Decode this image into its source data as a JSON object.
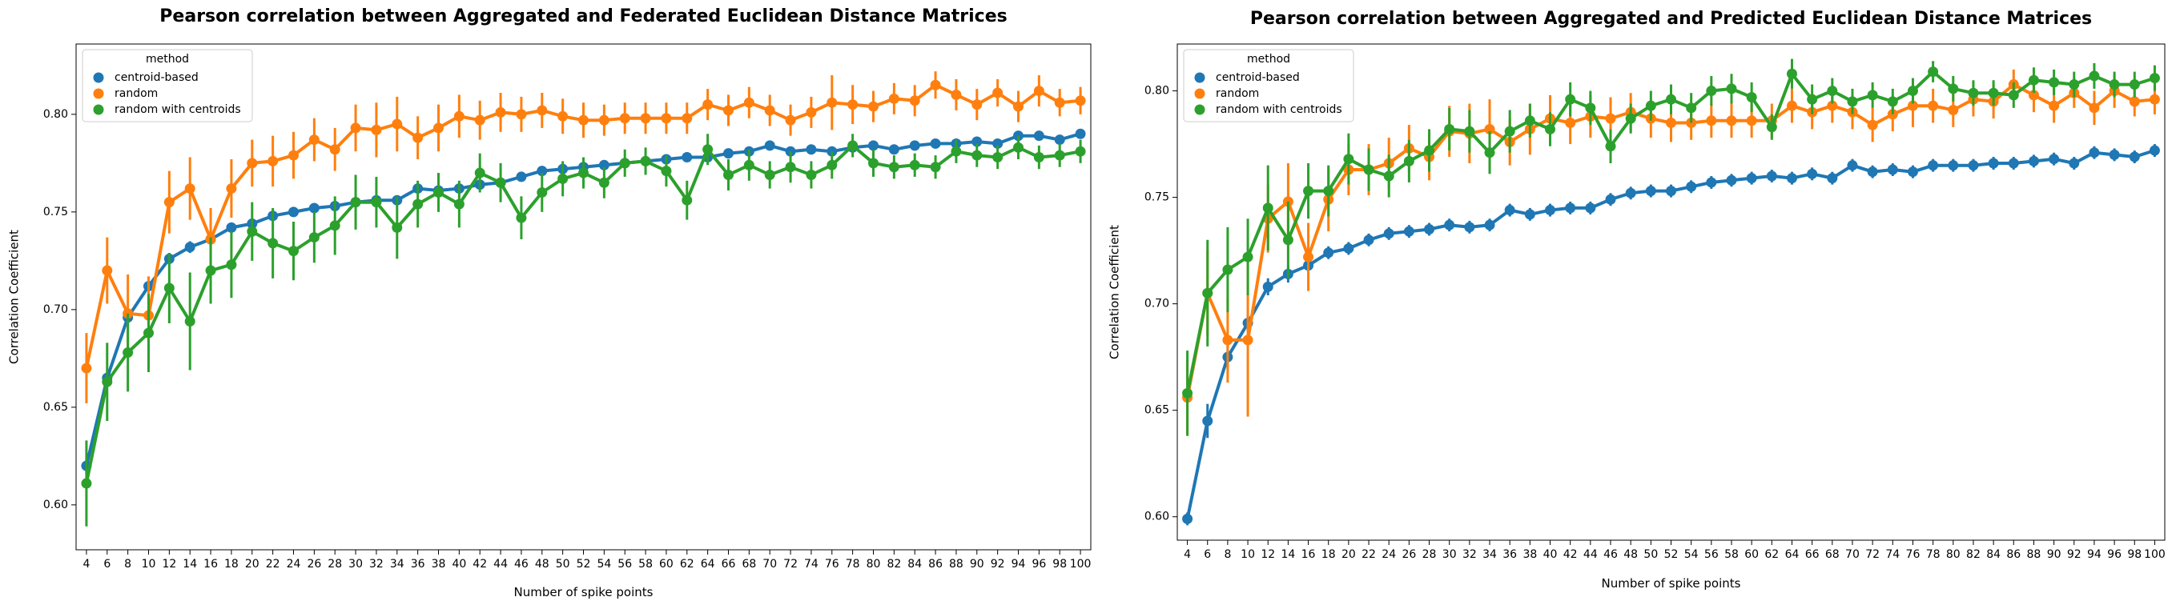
{
  "colors": {
    "centroid": "#1f77b4",
    "random": "#ff7f0e",
    "random_centroids": "#2ca02c"
  },
  "chart_data": [
    {
      "type": "line",
      "title": "Pearson correlation between Aggregated and Federated Euclidean Distance Matrices",
      "xlabel": "Number of spike points",
      "ylabel": "Correlation Coefficient",
      "ylim": [
        0.577,
        0.836
      ],
      "yticks": [
        "0.60",
        "0.65",
        "0.70",
        "0.75",
        "0.80"
      ],
      "categories": [
        "4",
        "6",
        "8",
        "10",
        "12",
        "14",
        "16",
        "18",
        "20",
        "22",
        "24",
        "26",
        "28",
        "30",
        "32",
        "34",
        "36",
        "38",
        "40",
        "42",
        "44",
        "46",
        "48",
        "50",
        "52",
        "54",
        "56",
        "58",
        "60",
        "62",
        "64",
        "66",
        "68",
        "70",
        "72",
        "74",
        "76",
        "78",
        "80",
        "82",
        "84",
        "86",
        "88",
        "90",
        "92",
        "94",
        "96",
        "98",
        "100"
      ],
      "legend": {
        "title": "method",
        "position": "top-left",
        "entries": [
          "centroid-based",
          "random",
          "random with centroids"
        ]
      },
      "series": [
        {
          "name": "centroid-based",
          "color": "#1f77b4",
          "values": [
            0.62,
            0.665,
            0.696,
            0.712,
            0.726,
            0.732,
            0.736,
            0.742,
            0.744,
            0.748,
            0.75,
            0.752,
            0.753,
            0.755,
            0.756,
            0.756,
            0.762,
            0.761,
            0.762,
            0.764,
            0.765,
            0.768,
            0.771,
            0.772,
            0.773,
            0.774,
            0.775,
            0.776,
            0.777,
            0.778,
            0.778,
            0.78,
            0.781,
            0.784,
            0.781,
            0.782,
            0.781,
            0.783,
            0.784,
            0.782,
            0.784,
            0.785,
            0.785,
            0.786,
            0.785,
            0.789,
            0.789,
            0.787,
            0.79
          ],
          "errors": [
            0.004,
            0.003,
            0.003,
            0.003,
            0.003,
            0.003,
            0.002,
            0.002,
            0.002,
            0.002,
            0.002,
            0.002,
            0.002,
            0.002,
            0.002,
            0.002,
            0.002,
            0.002,
            0.002,
            0.002,
            0.002,
            0.002,
            0.002,
            0.002,
            0.002,
            0.002,
            0.002,
            0.002,
            0.002,
            0.002,
            0.002,
            0.002,
            0.002,
            0.002,
            0.002,
            0.002,
            0.002,
            0.002,
            0.002,
            0.002,
            0.002,
            0.002,
            0.002,
            0.002,
            0.002,
            0.002,
            0.002,
            0.002,
            0.002
          ]
        },
        {
          "name": "random",
          "color": "#ff7f0e",
          "values": [
            0.67,
            0.72,
            0.698,
            0.697,
            0.755,
            0.762,
            0.736,
            0.762,
            0.775,
            0.776,
            0.779,
            0.787,
            0.782,
            0.793,
            0.792,
            0.795,
            0.788,
            0.793,
            0.799,
            0.797,
            0.801,
            0.8,
            0.802,
            0.799,
            0.797,
            0.797,
            0.798,
            0.798,
            0.798,
            0.798,
            0.805,
            0.802,
            0.806,
            0.802,
            0.797,
            0.801,
            0.806,
            0.805,
            0.804,
            0.808,
            0.807,
            0.815,
            0.81,
            0.805,
            0.811,
            0.804,
            0.812,
            0.806,
            0.807
          ],
          "errors": [
            0.018,
            0.017,
            0.02,
            0.02,
            0.016,
            0.016,
            0.016,
            0.015,
            0.012,
            0.013,
            0.012,
            0.011,
            0.011,
            0.012,
            0.014,
            0.014,
            0.011,
            0.012,
            0.011,
            0.01,
            0.01,
            0.009,
            0.009,
            0.009,
            0.009,
            0.008,
            0.008,
            0.008,
            0.008,
            0.008,
            0.008,
            0.008,
            0.008,
            0.008,
            0.008,
            0.008,
            0.014,
            0.01,
            0.008,
            0.008,
            0.008,
            0.007,
            0.008,
            0.008,
            0.007,
            0.008,
            0.008,
            0.007,
            0.007
          ]
        },
        {
          "name": "random with centroids",
          "color": "#2ca02c",
          "values": [
            0.611,
            0.663,
            0.678,
            0.688,
            0.711,
            0.694,
            0.72,
            0.723,
            0.74,
            0.734,
            0.73,
            0.737,
            0.743,
            0.755,
            0.755,
            0.742,
            0.754,
            0.76,
            0.754,
            0.77,
            0.765,
            0.747,
            0.76,
            0.767,
            0.77,
            0.765,
            0.775,
            0.776,
            0.771,
            0.756,
            0.782,
            0.769,
            0.774,
            0.769,
            0.773,
            0.769,
            0.774,
            0.784,
            0.775,
            0.773,
            0.774,
            0.773,
            0.781,
            0.779,
            0.778,
            0.783,
            0.778,
            0.779,
            0.781
          ],
          "errors": [
            0.022,
            0.02,
            0.02,
            0.02,
            0.018,
            0.025,
            0.017,
            0.017,
            0.015,
            0.018,
            0.015,
            0.013,
            0.015,
            0.014,
            0.013,
            0.016,
            0.012,
            0.01,
            0.012,
            0.01,
            0.01,
            0.011,
            0.01,
            0.009,
            0.008,
            0.008,
            0.007,
            0.007,
            0.008,
            0.01,
            0.008,
            0.008,
            0.008,
            0.007,
            0.008,
            0.007,
            0.007,
            0.006,
            0.007,
            0.006,
            0.006,
            0.006,
            0.006,
            0.006,
            0.006,
            0.006,
            0.006,
            0.006,
            0.006
          ]
        }
      ]
    },
    {
      "type": "line",
      "title": "Pearson correlation between Aggregated and Predicted Euclidean Distance Matrices",
      "xlabel": "Number of spike points",
      "ylabel": "Correlation Coefficient",
      "ylim": [
        0.589,
        0.822
      ],
      "yticks": [
        "0.60",
        "0.65",
        "0.70",
        "0.75",
        "0.80"
      ],
      "categories": [
        "4",
        "6",
        "8",
        "10",
        "12",
        "14",
        "16",
        "18",
        "20",
        "22",
        "24",
        "26",
        "28",
        "30",
        "32",
        "34",
        "36",
        "38",
        "40",
        "42",
        "44",
        "46",
        "48",
        "50",
        "52",
        "54",
        "56",
        "58",
        "60",
        "62",
        "64",
        "66",
        "68",
        "70",
        "72",
        "74",
        "76",
        "78",
        "80",
        "82",
        "84",
        "86",
        "88",
        "90",
        "92",
        "94",
        "96",
        "98",
        "100"
      ],
      "legend": {
        "title": "method",
        "position": "top-left",
        "entries": [
          "centroid-based",
          "random",
          "random with centroids"
        ]
      },
      "series": [
        {
          "name": "centroid-based",
          "color": "#1f77b4",
          "values": [
            0.599,
            0.645,
            0.675,
            0.691,
            0.708,
            0.714,
            0.718,
            0.724,
            0.726,
            0.73,
            0.733,
            0.734,
            0.735,
            0.737,
            0.736,
            0.737,
            0.744,
            0.742,
            0.744,
            0.745,
            0.745,
            0.749,
            0.752,
            0.753,
            0.753,
            0.755,
            0.757,
            0.758,
            0.759,
            0.76,
            0.759,
            0.761,
            0.759,
            0.765,
            0.762,
            0.763,
            0.762,
            0.765,
            0.765,
            0.765,
            0.766,
            0.766,
            0.767,
            0.768,
            0.766,
            0.771,
            0.77,
            0.769,
            0.772
          ],
          "errors": [
            0.003,
            0.008,
            0.006,
            0.004,
            0.004,
            0.004,
            0.003,
            0.003,
            0.003,
            0.003,
            0.003,
            0.003,
            0.003,
            0.003,
            0.003,
            0.003,
            0.003,
            0.003,
            0.003,
            0.003,
            0.003,
            0.003,
            0.003,
            0.003,
            0.003,
            0.003,
            0.003,
            0.003,
            0.003,
            0.003,
            0.003,
            0.003,
            0.003,
            0.003,
            0.003,
            0.003,
            0.003,
            0.003,
            0.003,
            0.003,
            0.003,
            0.003,
            0.003,
            0.003,
            0.003,
            0.003,
            0.003,
            0.003,
            0.003
          ]
        },
        {
          "name": "random",
          "color": "#ff7f0e",
          "values": [
            0.656,
            0.705,
            0.683,
            0.683,
            0.74,
            0.748,
            0.722,
            0.749,
            0.763,
            0.763,
            0.766,
            0.773,
            0.769,
            0.781,
            0.78,
            0.782,
            0.776,
            0.782,
            0.787,
            0.785,
            0.788,
            0.787,
            0.79,
            0.787,
            0.785,
            0.785,
            0.786,
            0.786,
            0.786,
            0.786,
            0.793,
            0.79,
            0.793,
            0.79,
            0.784,
            0.789,
            0.793,
            0.793,
            0.791,
            0.796,
            0.795,
            0.803,
            0.798,
            0.793,
            0.799,
            0.792,
            0.8,
            0.795,
            0.796
          ],
          "errors": [
            0.018,
            0.02,
            0.02,
            0.036,
            0.016,
            0.018,
            0.016,
            0.015,
            0.012,
            0.012,
            0.012,
            0.011,
            0.011,
            0.012,
            0.014,
            0.014,
            0.011,
            0.012,
            0.011,
            0.01,
            0.01,
            0.01,
            0.009,
            0.009,
            0.009,
            0.008,
            0.008,
            0.008,
            0.008,
            0.008,
            0.008,
            0.008,
            0.008,
            0.008,
            0.008,
            0.008,
            0.01,
            0.008,
            0.008,
            0.008,
            0.008,
            0.007,
            0.008,
            0.008,
            0.007,
            0.008,
            0.008,
            0.007,
            0.007
          ]
        },
        {
          "name": "random with centroids",
          "color": "#2ca02c",
          "values": [
            0.658,
            0.705,
            0.716,
            0.722,
            0.745,
            0.73,
            0.753,
            0.753,
            0.768,
            0.763,
            0.76,
            0.767,
            0.772,
            0.782,
            0.781,
            0.771,
            0.781,
            0.786,
            0.782,
            0.796,
            0.792,
            0.774,
            0.787,
            0.793,
            0.796,
            0.792,
            0.8,
            0.801,
            0.797,
            0.783,
            0.808,
            0.796,
            0.8,
            0.795,
            0.798,
            0.795,
            0.8,
            0.809,
            0.801,
            0.799,
            0.799,
            0.798,
            0.805,
            0.804,
            0.803,
            0.807,
            0.803,
            0.803,
            0.806
          ],
          "errors": [
            0.02,
            0.025,
            0.02,
            0.018,
            0.02,
            0.018,
            0.013,
            0.012,
            0.012,
            0.01,
            0.01,
            0.01,
            0.01,
            0.01,
            0.01,
            0.01,
            0.01,
            0.008,
            0.008,
            0.008,
            0.008,
            0.008,
            0.007,
            0.007,
            0.007,
            0.007,
            0.007,
            0.007,
            0.007,
            0.006,
            0.007,
            0.007,
            0.006,
            0.006,
            0.006,
            0.006,
            0.006,
            0.005,
            0.006,
            0.006,
            0.006,
            0.006,
            0.006,
            0.006,
            0.006,
            0.006,
            0.006,
            0.006,
            0.006
          ]
        }
      ]
    }
  ]
}
